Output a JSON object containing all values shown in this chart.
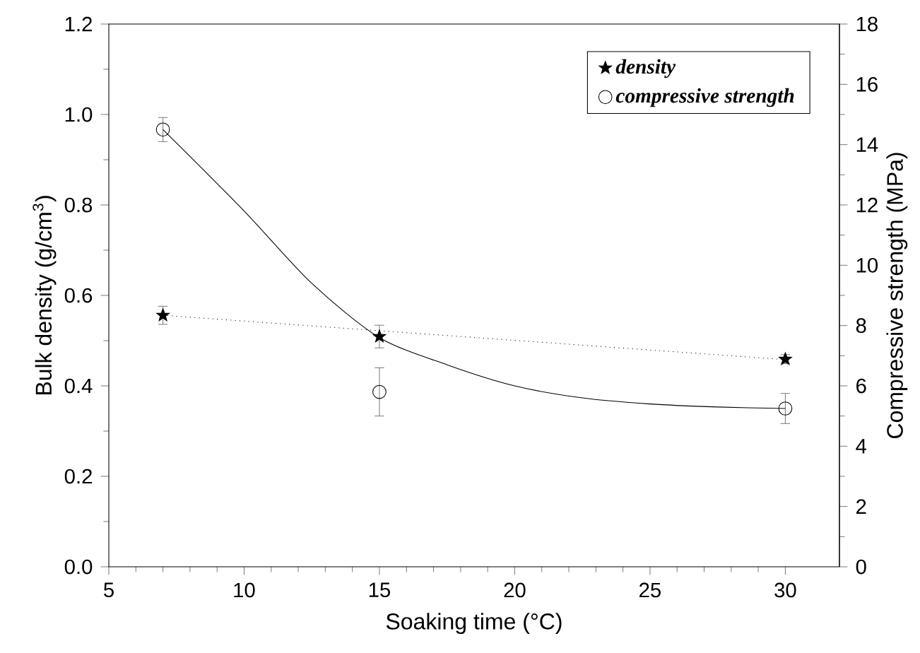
{
  "chart_data": {
    "type": "scatter",
    "xlabel": "Soaking time (°C)",
    "ylabel": "Bulk density (g/cm$^{3}$)",
    "y2label": "Compressive strength (MPa)",
    "xlim": [
      5,
      32
    ],
    "xticks": [
      5,
      10,
      15,
      20,
      25,
      30
    ],
    "ylim": [
      0,
      1.2
    ],
    "yticks": [
      {
        "value": 0,
        "label": "0.0"
      },
      {
        "value": 0.2,
        "label": "0.2"
      },
      {
        "value": 0.4,
        "label": "0.4"
      },
      {
        "value": 0.6,
        "label": "0.6"
      },
      {
        "value": 0.8,
        "label": "0.8"
      },
      {
        "value": 1.0,
        "label": "1.0"
      },
      {
        "value": 1.2,
        "label": "1.2"
      }
    ],
    "y2lim": [
      0,
      18
    ],
    "y2ticks": [
      0,
      2,
      4,
      6,
      8,
      10,
      12,
      14,
      16,
      18
    ],
    "legend": "top right",
    "series": [
      {
        "name": "density",
        "marker": "star",
        "color": "#000000",
        "x": [
          7,
          15,
          30
        ],
        "values": [
          0.556,
          0.509,
          0.459
        ],
        "errors": [
          0.02,
          0.025,
          0.01
        ]
      },
      {
        "name": "compressive strength",
        "marker": "circle",
        "axis": "y2",
        "color": "#000000",
        "x": [
          7,
          15,
          30
        ],
        "values": [
          14.5,
          5.8,
          5.25
        ],
        "errors": [
          0.4,
          0.8,
          0.5
        ]
      },
      {
        "type": "line",
        "line_style": "dotted",
        "marker": "none",
        "color": "#000000",
        "x": [
          7,
          30
        ],
        "values": [
          0.556,
          0.458
        ]
      },
      {
        "type": "line",
        "line_style": "solid",
        "marker": "none",
        "axis": "y2",
        "color": "#000000",
        "x": [
          7,
          10,
          12.5,
          15,
          17.5,
          20,
          22.5,
          25,
          27.5,
          30
        ],
        "values": [
          14.5,
          11.8,
          9.4,
          7.6,
          6.7,
          6.0,
          5.6,
          5.4,
          5.3,
          5.25
        ]
      }
    ]
  }
}
